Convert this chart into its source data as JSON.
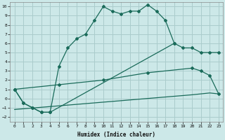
{
  "bg_color": "#cce8e8",
  "grid_color": "#aacccc",
  "line_color": "#1a6b5a",
  "xlabel": "Humidex (Indice chaleur)",
  "xlim": [
    -0.5,
    23.5
  ],
  "ylim": [
    -2.5,
    10.5
  ],
  "xticks": [
    0,
    1,
    2,
    3,
    4,
    5,
    6,
    7,
    8,
    9,
    10,
    11,
    12,
    13,
    14,
    15,
    16,
    17,
    18,
    19,
    20,
    21,
    22,
    23
  ],
  "yticks": [
    -2,
    -1,
    0,
    1,
    2,
    3,
    4,
    5,
    6,
    7,
    8,
    9,
    10
  ],
  "line1_x": [
    0,
    1,
    2,
    3,
    4,
    5,
    6,
    7,
    8,
    9,
    10,
    11,
    12,
    13,
    14,
    15,
    16,
    17,
    18
  ],
  "line1_y": [
    1.0,
    -0.5,
    -1.0,
    -1.5,
    -1.5,
    3.5,
    5.5,
    6.5,
    7.0,
    8.5,
    10.0,
    9.5,
    9.2,
    9.5,
    9.5,
    10.2,
    9.5,
    8.5,
    6.0
  ],
  "line2_x": [
    0,
    1,
    2,
    3,
    4,
    18,
    19,
    20,
    21,
    22,
    23
  ],
  "line2_y": [
    1.0,
    -0.5,
    -1.0,
    -1.5,
    -1.5,
    6.0,
    5.5,
    5.5,
    5.0,
    5.0,
    5.0
  ],
  "line3_x": [
    0,
    5,
    10,
    15,
    20,
    21,
    22,
    23
  ],
  "line3_y": [
    1.0,
    1.5,
    2.0,
    2.8,
    3.3,
    3.0,
    2.5,
    0.5
  ],
  "line4_x": [
    0,
    5,
    10,
    15,
    20,
    21,
    22,
    23
  ],
  "line4_y": [
    -1.2,
    -0.8,
    -0.4,
    0.0,
    0.4,
    0.5,
    0.6,
    0.5
  ]
}
